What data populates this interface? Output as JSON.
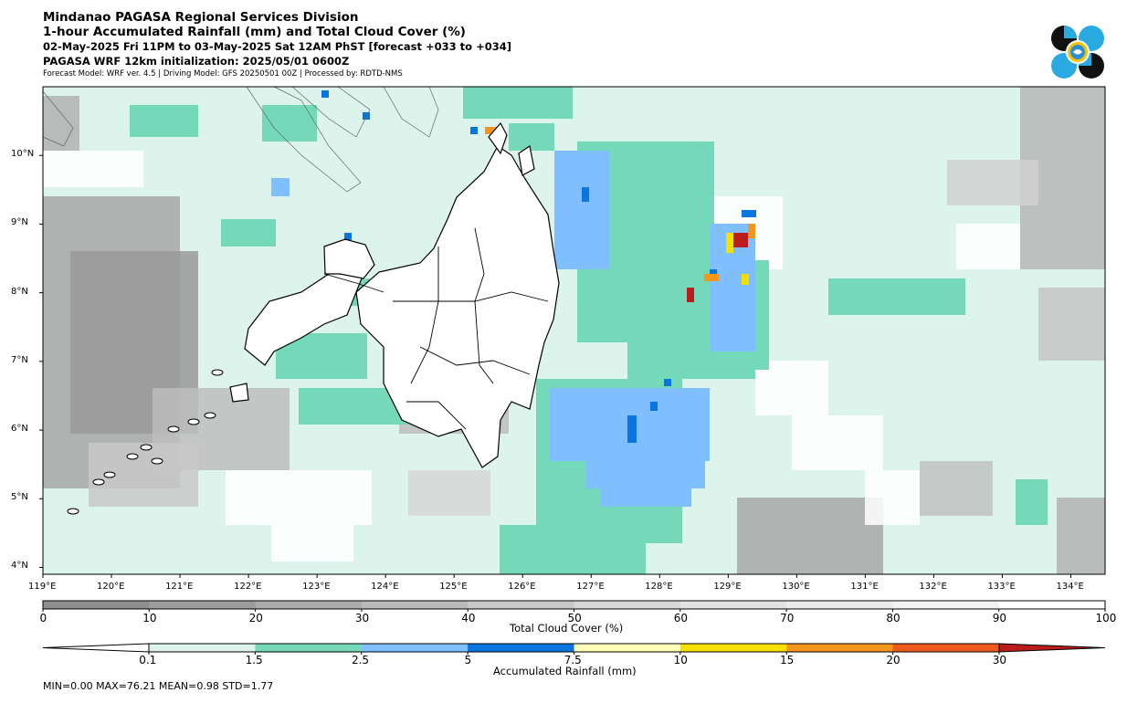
{
  "header": {
    "line1": "Mindanao PAGASA Regional Services Division",
    "line2": "1-hour Accumulated Rainfall (mm) and Total Cloud Cover (%)",
    "line3": "02-May-2025 Fri 11PM to 03-May-2025 Sat 12AM PhST [forecast +033 to +034]",
    "line4": "PAGASA WRF 12km initialization: 2025/05/01 0600Z",
    "line5": "Forecast Model: WRF ver. 4.5 | Driving Model: GFS 20250501 00Z | Processed by: RDTD-NMS"
  },
  "map": {
    "lon_range": [
      119,
      134.5
    ],
    "lat_range": [
      3.9,
      11.0
    ],
    "lon_ticks": [
      "119°E",
      "120°E",
      "121°E",
      "122°E",
      "123°E",
      "124°E",
      "125°E",
      "126°E",
      "127°E",
      "128°E",
      "129°E",
      "130°E",
      "131°E",
      "132°E",
      "133°E",
      "134°E"
    ],
    "lat_ticks": [
      "10°N",
      "9°N",
      "8°N",
      "7°N",
      "6°N",
      "5°N",
      "4°N"
    ]
  },
  "cloud_legend": {
    "label": "Total Cloud Cover (%)",
    "ticks": [
      "0",
      "10",
      "20",
      "30",
      "40",
      "50",
      "60",
      "70",
      "80",
      "90",
      "100"
    ],
    "colors": [
      "#8f8f8f",
      "#9d9d9d",
      "#acacac",
      "#bababa",
      "#c9c9c9",
      "#d7d7d7",
      "#e2e2e2",
      "#ebebeb",
      "#f3f3f3",
      "#ffffff"
    ]
  },
  "rain_legend": {
    "label": "Accumulated Rainfall (mm)",
    "ticks": [
      "0.1",
      "1.5",
      "2.5",
      "5",
      "7.5",
      "10",
      "15",
      "20",
      "30"
    ],
    "colors": [
      "#ffffff",
      "#dcf4ec",
      "#73d9b9",
      "#7fbfff",
      "#0a74e0",
      "#ffffb8",
      "#f7e000",
      "#f4951c",
      "#ee5a1c",
      "#bb1d1d"
    ]
  },
  "stats": "MIN=0.00   MAX=76.21   MEAN=0.98   STD=1.77",
  "logo": {
    "icon": "pagasa-logo-icon"
  }
}
